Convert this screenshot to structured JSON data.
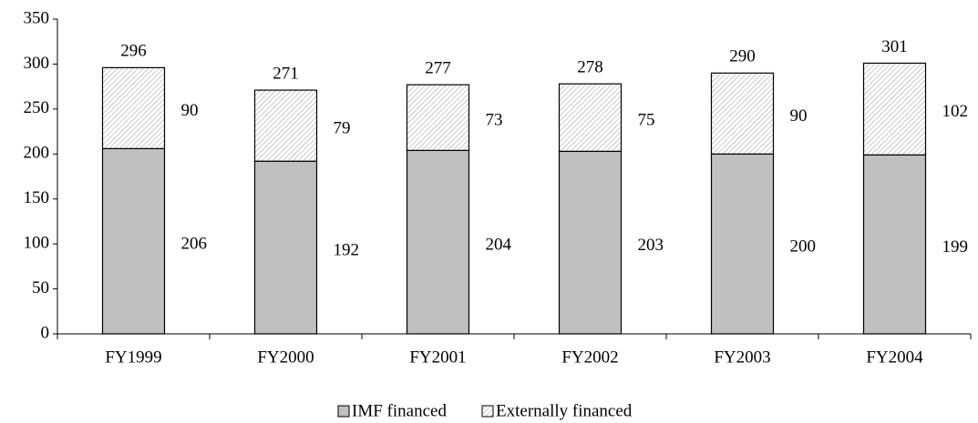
{
  "chart_data": {
    "type": "stacked_bar",
    "categories": [
      "FY1999",
      "FY2000",
      "FY2001",
      "FY2002",
      "FY2003",
      "FY2004"
    ],
    "series": [
      {
        "name": "IMF financed",
        "color": "#c0c0c0",
        "values": [
          206,
          192,
          204,
          203,
          200,
          199
        ]
      },
      {
        "name": "Externally financed",
        "color": "#ffffff",
        "pattern": "diagonal",
        "values": [
          90,
          79,
          73,
          75,
          90,
          102
        ]
      }
    ],
    "totals": [
      296,
      271,
      277,
      278,
      290,
      301
    ],
    "ylim": [
      0,
      350
    ],
    "yticks": [
      0,
      50,
      100,
      150,
      200,
      250,
      300,
      350
    ],
    "grid": false,
    "legend": "bottom"
  }
}
